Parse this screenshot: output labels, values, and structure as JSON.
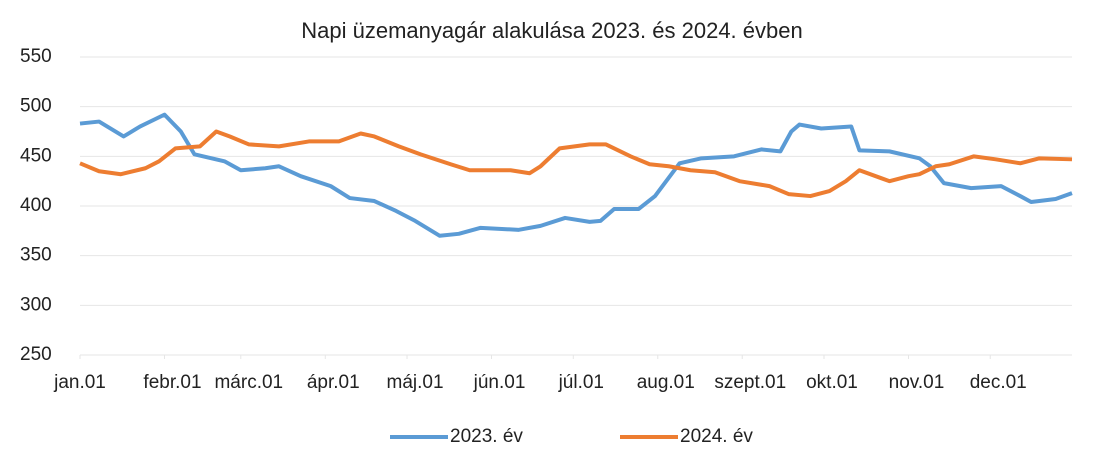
{
  "chart_data": {
    "type": "line",
    "title": "Napi üzemanyagár alakulása 2023. és 2024. évben",
    "xlim": [
      1,
      365
    ],
    "xticks": [
      {
        "value": 1,
        "label": "jan.01"
      },
      {
        "value": 32,
        "label": "febr.01"
      },
      {
        "value": 60,
        "label": "márc.01"
      },
      {
        "value": 91,
        "label": "ápr.01"
      },
      {
        "value": 121,
        "label": "máj.01"
      },
      {
        "value": 152,
        "label": "jún.01"
      },
      {
        "value": 182,
        "label": "júl.01"
      },
      {
        "value": 213,
        "label": "aug.01"
      },
      {
        "value": 244,
        "label": "szept.01"
      },
      {
        "value": 274,
        "label": "okt.01"
      },
      {
        "value": 305,
        "label": "nov.01"
      },
      {
        "value": 335,
        "label": "dec.01"
      }
    ],
    "ylim": [
      250,
      550
    ],
    "yticks": [
      250,
      300,
      350,
      400,
      450,
      500,
      550
    ],
    "grid": true,
    "legend": "bottom",
    "series": [
      {
        "name": "2023. év",
        "color": "#5b9bd5",
        "x": [
          1,
          8,
          17,
          23,
          32,
          38,
          43,
          54,
          60,
          69,
          74,
          82,
          93,
          100,
          109,
          117,
          124,
          133,
          140,
          148,
          162,
          170,
          179,
          188,
          192,
          197,
          206,
          212,
          221,
          229,
          241,
          251,
          258,
          262,
          265,
          273,
          284,
          287,
          298,
          309,
          313,
          318,
          328,
          339,
          346,
          350,
          359,
          365
        ],
        "values": [
          483,
          485,
          470,
          480,
          492,
          475,
          452,
          445,
          436,
          438,
          440,
          430,
          420,
          408,
          405,
          395,
          385,
          370,
          372,
          378,
          376,
          380,
          388,
          384,
          385,
          397,
          397,
          410,
          443,
          448,
          450,
          457,
          455,
          475,
          482,
          478,
          480,
          456,
          455,
          448,
          440,
          423,
          418,
          420,
          410,
          404,
          407,
          413
        ]
      },
      {
        "name": "2024. év",
        "color": "#ed7d31",
        "x": [
          1,
          8,
          16,
          25,
          30,
          36,
          45,
          51,
          56,
          63,
          74,
          85,
          96,
          104,
          109,
          118,
          126,
          137,
          144,
          159,
          166,
          170,
          177,
          188,
          194,
          203,
          210,
          217,
          225,
          234,
          243,
          254,
          261,
          269,
          276,
          282,
          287,
          295,
          298,
          305,
          309,
          315,
          320,
          329,
          337,
          346,
          353,
          365
        ],
        "values": [
          443,
          435,
          432,
          438,
          445,
          458,
          460,
          475,
          470,
          462,
          460,
          465,
          465,
          473,
          470,
          460,
          452,
          442,
          436,
          436,
          433,
          440,
          458,
          462,
          462,
          450,
          442,
          440,
          436,
          434,
          425,
          420,
          412,
          410,
          415,
          425,
          436,
          428,
          425,
          430,
          432,
          440,
          442,
          450,
          447,
          443,
          448,
          447
        ]
      }
    ]
  }
}
